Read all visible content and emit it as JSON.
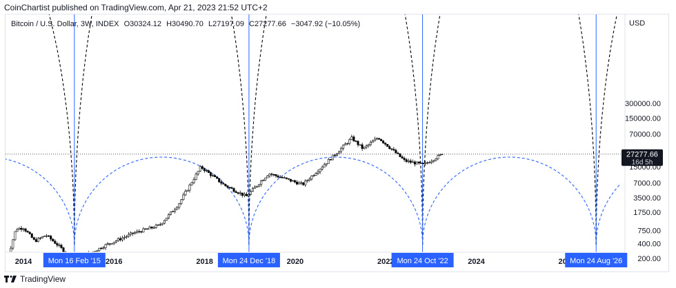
{
  "header": {
    "published_by": "CoinChartist published on TradingView.com, Apr 21, 2023 21:52 UTC+2"
  },
  "legend": {
    "symbol": "Bitcoin / U.S. Dollar, 3W, INDEX",
    "open": "O30324.12",
    "high": "H30490.70",
    "low": "L27197.09",
    "close": "C27277.66",
    "change": "−3047.92 (−10.05%)"
  },
  "footer": {
    "brand": "TradingView"
  },
  "chart_data": {
    "type": "candlestick",
    "title": "Bitcoin / U.S. Dollar, 3W, INDEX",
    "y_axis_label": "USD",
    "y_scale": "log",
    "y_ticks": [
      200,
      400,
      750,
      1750,
      3500,
      7000,
      15000,
      70000,
      150000,
      300000
    ],
    "y_tick_labels": [
      "200.00",
      "400.00",
      "750.00",
      "1750.00",
      "3500.00",
      "7000.00",
      "15000.00",
      "70000.00",
      "150000.00",
      "300000.00"
    ],
    "x_tick_labels": [
      "2014",
      "2016",
      "2018",
      "2020",
      "2022",
      "2024",
      "2026"
    ],
    "last_price": {
      "value": 27277.66,
      "label": "27277.66",
      "countdown": "16d 5h"
    },
    "cycle_markers": [
      {
        "date": "2015-02-16",
        "label": "Mon 16 Feb '15"
      },
      {
        "date": "2018-12-24",
        "label": "Mon 24 Dec '18"
      },
      {
        "date": "2022-10-24",
        "label": "Mon 24 Oct '22"
      },
      {
        "date": "2026-08-24",
        "label": "Mon 24 Aug '26"
      }
    ],
    "series": [
      {
        "date": "2013-08",
        "close": 120
      },
      {
        "date": "2013-11",
        "close": 800
      },
      {
        "date": "2014-01",
        "close": 850
      },
      {
        "date": "2014-04",
        "close": 450
      },
      {
        "date": "2014-07",
        "close": 600
      },
      {
        "date": "2014-10",
        "close": 380
      },
      {
        "date": "2015-01",
        "close": 230
      },
      {
        "date": "2015-06",
        "close": 240
      },
      {
        "date": "2015-11",
        "close": 380
      },
      {
        "date": "2016-06",
        "close": 650
      },
      {
        "date": "2017-01",
        "close": 950
      },
      {
        "date": "2017-06",
        "close": 2500
      },
      {
        "date": "2017-12",
        "close": 15000
      },
      {
        "date": "2018-06",
        "close": 6500
      },
      {
        "date": "2018-12",
        "close": 3700
      },
      {
        "date": "2019-06",
        "close": 11000
      },
      {
        "date": "2020-03",
        "close": 6500
      },
      {
        "date": "2020-12",
        "close": 29000
      },
      {
        "date": "2021-04",
        "close": 58000
      },
      {
        "date": "2021-07",
        "close": 35000
      },
      {
        "date": "2021-11",
        "close": 60000
      },
      {
        "date": "2022-06",
        "close": 20000
      },
      {
        "date": "2022-11",
        "close": 16500
      },
      {
        "date": "2023-04",
        "close": 27277.66
      }
    ],
    "colors": {
      "up": "#ffffff",
      "down": "#000000",
      "cycle_line": "#2962ff",
      "top_arc": "#000000",
      "bottom_arc": "#2962ff"
    }
  }
}
